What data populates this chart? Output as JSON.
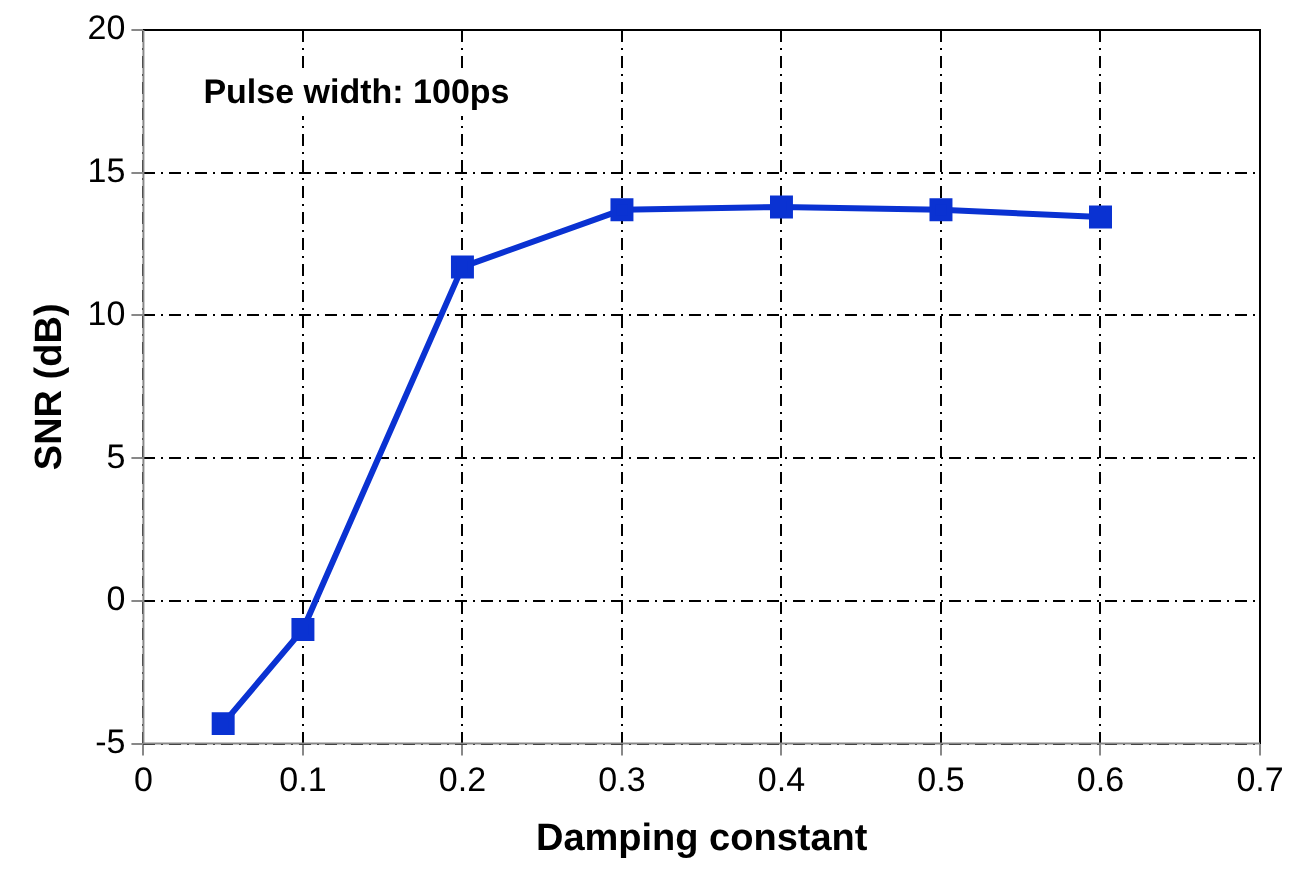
{
  "chart_data": {
    "type": "line",
    "xlabel": "Damping constant",
    "ylabel": "SNR (dB)",
    "annotations": [
      "Pulse width: 100ps"
    ],
    "x": [
      0.05,
      0.1,
      0.2,
      0.3,
      0.4,
      0.5,
      0.6
    ],
    "series": [
      {
        "color": "#0a32d2",
        "values": [
          -4.3,
          -1.0,
          11.7,
          13.7,
          13.8,
          13.7,
          13.45
        ]
      }
    ],
    "xlim": [
      0,
      0.7
    ],
    "xticks": [
      0,
      0.1,
      0.2,
      0.3,
      0.4,
      0.5,
      0.6,
      0.7
    ],
    "ylim": [
      -5,
      20
    ],
    "yticks": [
      -5,
      0,
      5,
      10,
      15,
      20
    ],
    "grid": true,
    "marker": "square",
    "line_style": "solid",
    "legend": false
  }
}
